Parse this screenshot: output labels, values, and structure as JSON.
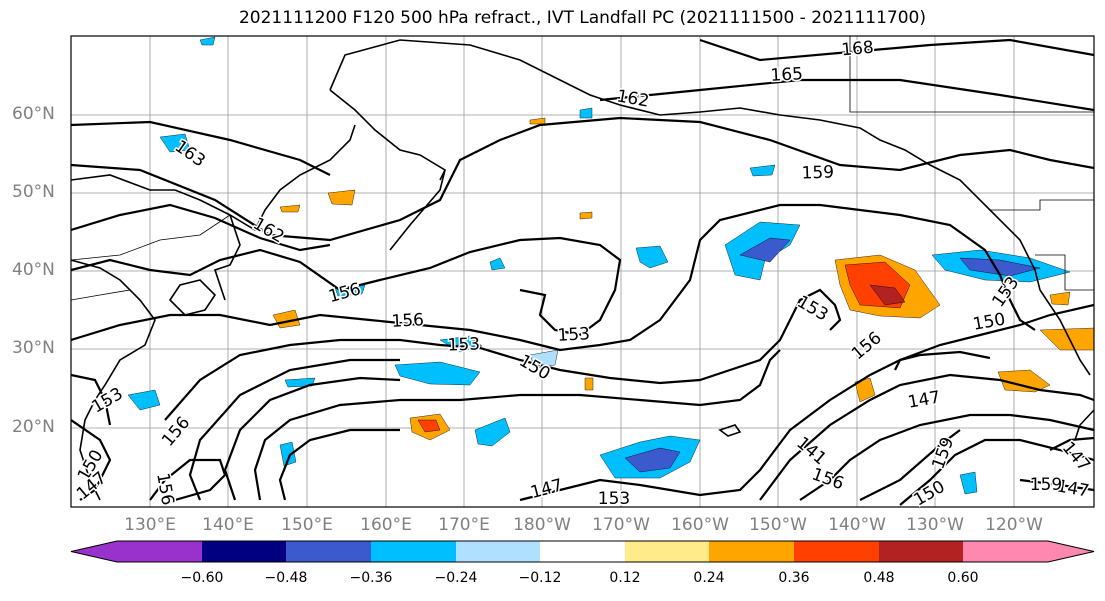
{
  "title": "2021111200 F120 500 hPa refract., IVT Landfall PC (2021111500 - 2021111700)",
  "lat_labels": [
    "60°N",
    "50°N",
    "40°N",
    "30°N",
    "20°N"
  ],
  "lon_labels": [
    "130°E",
    "140°E",
    "150°E",
    "160°E",
    "170°E",
    "180°W",
    "170°W",
    "160°W",
    "150°W",
    "140°W",
    "130°W",
    "120°W"
  ],
  "contour_labels": [
    "168",
    "165",
    "162",
    "163",
    "159",
    "162",
    "156",
    "156",
    "153",
    "153",
    "150",
    "153",
    "153",
    "150",
    "156",
    "147",
    "153",
    "156",
    "147",
    "153",
    "150",
    "147",
    "156",
    "150",
    "147",
    "159",
    "156",
    "147",
    "159",
    "141"
  ],
  "colorbar": {
    "ticks": [
      "−0.60",
      "−0.48",
      "−0.36",
      "−0.24",
      "−0.12",
      "0.12",
      "0.24",
      "0.36",
      "0.48",
      "0.60"
    ],
    "colors": [
      "#9932cc",
      "#000080",
      "#3a5acd",
      "#00bfff",
      "#b0e0ff",
      "#ffffff",
      "#ffeb8a",
      "#ffa500",
      "#ff4000",
      "#b22222",
      "#ff88b0"
    ]
  }
}
